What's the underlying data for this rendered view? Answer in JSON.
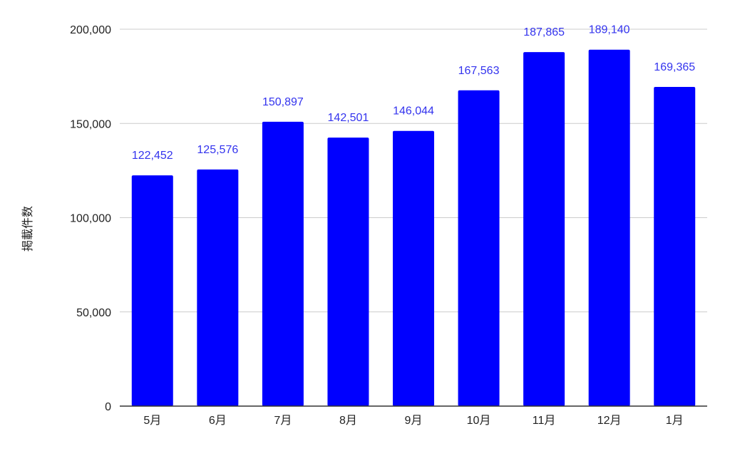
{
  "chart_data": {
    "type": "bar",
    "title": "",
    "xlabel": "",
    "ylabel": "掲載件数",
    "categories": [
      "5月",
      "6月",
      "7月",
      "8月",
      "9月",
      "10月",
      "11月",
      "12月",
      "1月"
    ],
    "series": [
      {
        "values": [
          122452,
          125576,
          150897,
          142501,
          146044,
          167563,
          187865,
          189140,
          169365
        ]
      }
    ],
    "data_labels": [
      "122,452",
      "125,576",
      "150,897",
      "142,501",
      "146,044",
      "167,563",
      "187,865",
      "189,140",
      "169,365"
    ],
    "yticks": [
      0,
      50000,
      100000,
      150000,
      200000
    ],
    "ytick_labels": [
      "0",
      "50,000",
      "100,000",
      "150,000",
      "200,000"
    ],
    "ylim": [
      0,
      200000
    ],
    "grid": true,
    "legend": "none",
    "colors": {
      "bar": "#0000ff",
      "data_label": "#3333ee",
      "gridline": "#cccccc",
      "axis": "#333333"
    }
  }
}
